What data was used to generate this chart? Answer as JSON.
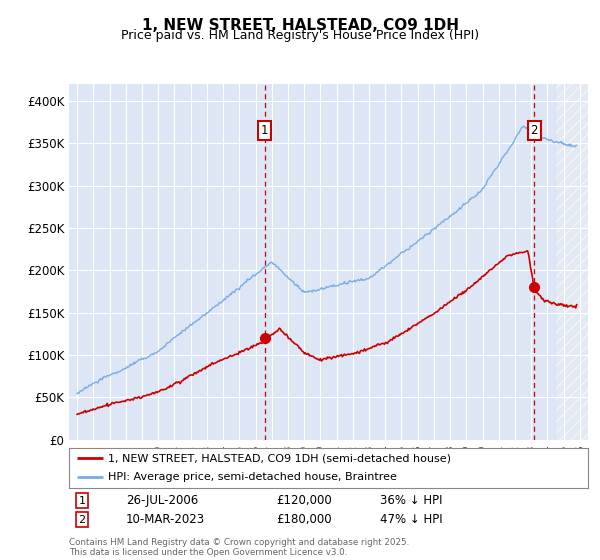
{
  "title": "1, NEW STREET, HALSTEAD, CO9 1DH",
  "subtitle": "Price paid vs. HM Land Registry's House Price Index (HPI)",
  "red_line_label": "1, NEW STREET, HALSTEAD, CO9 1DH (semi-detached house)",
  "blue_line_label": "HPI: Average price, semi-detached house, Braintree",
  "marker1_date": "26-JUL-2006",
  "marker1_price": "£120,000",
  "marker1_hpi": "36% ↓ HPI",
  "marker1_x": 2006.57,
  "marker1_y_red": 120000,
  "marker2_date": "10-MAR-2023",
  "marker2_price": "£180,000",
  "marker2_hpi": "47% ↓ HPI",
  "marker2_x": 2023.19,
  "marker2_y_red": 180000,
  "ylim": [
    0,
    420000
  ],
  "xlim": [
    1994.5,
    2026.5
  ],
  "yticks": [
    0,
    50000,
    100000,
    150000,
    200000,
    250000,
    300000,
    350000,
    400000
  ],
  "ytick_labels": [
    "£0",
    "£50K",
    "£100K",
    "£150K",
    "£200K",
    "£250K",
    "£300K",
    "£350K",
    "£400K"
  ],
  "footer": "Contains HM Land Registry data © Crown copyright and database right 2025.\nThis data is licensed under the Open Government Licence v3.0.",
  "red_color": "#cc0000",
  "blue_color": "#7aade0",
  "marker_box_color": "#cc0000",
  "plot_bg_color": "#dce6f5",
  "hatch_start": 2024.5
}
